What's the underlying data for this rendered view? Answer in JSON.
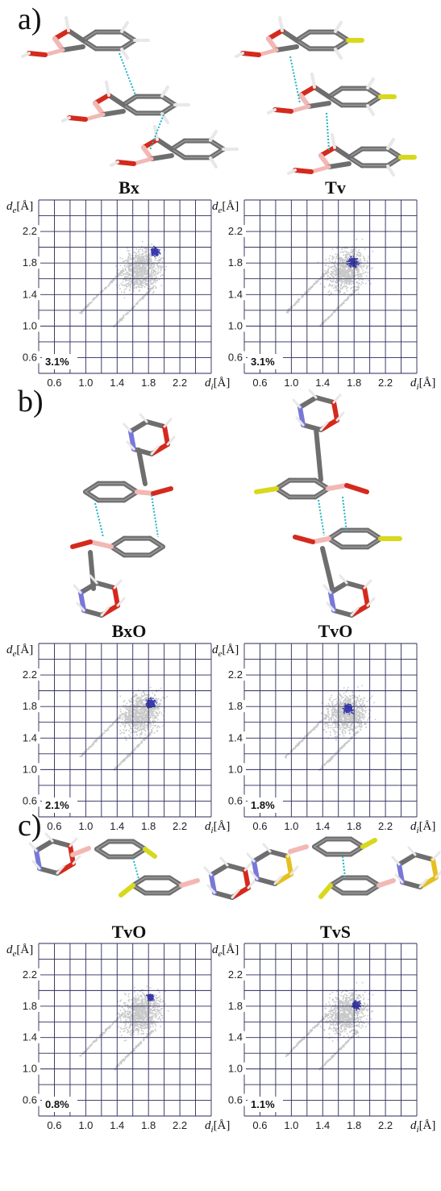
{
  "panels": [
    {
      "label": "a)",
      "plots": [
        {
          "title": "Bx",
          "percent": "3.1%"
        },
        {
          "title": "Tv",
          "percent": "3.1%"
        }
      ]
    },
    {
      "label": "b)",
      "plots": [
        {
          "title": "BxO",
          "percent": "2.1%"
        },
        {
          "title": "TvO",
          "percent": "1.8%"
        }
      ]
    },
    {
      "label": "c)",
      "plots": [
        {
          "title": "TvO",
          "percent": "0.8%"
        },
        {
          "title": "TvS",
          "percent": "1.1%"
        }
      ]
    }
  ],
  "axes": {
    "y_label_main": "d",
    "y_label_sub": "e",
    "x_label_main": "d",
    "x_label_sub": "i",
    "unit": "[Å]",
    "x_ticks": [
      "0.6",
      "1.0",
      "1.4",
      "1.8",
      "2.2"
    ],
    "y_ticks": [
      "0.6",
      "1.0",
      "1.4",
      "1.8",
      "2.2"
    ],
    "range": [
      0.4,
      2.6
    ]
  },
  "colors": {
    "carbon": "#6e6e6e",
    "oxygen": "#d42a1e",
    "boron": "#f2b8b4",
    "hydrogen": "#e8e8e8",
    "fluorine": "#d8d81c",
    "nitrogen": "#7878d8",
    "sulfur": "#e6c020",
    "contact": "#1fb5c4",
    "scatter": "#c8c8c8",
    "highlight": "#3a3ab0"
  }
}
